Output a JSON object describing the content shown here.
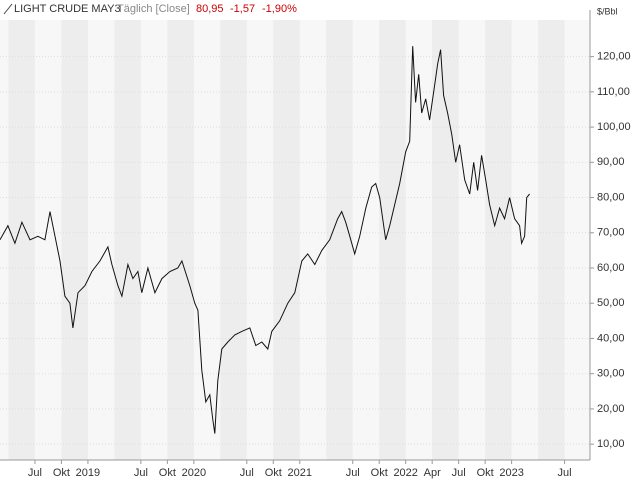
{
  "chart_data": {
    "type": "line",
    "title": "LIGHT CRUDE MAY3",
    "subtitle": "Täglich [Close]",
    "last": "80,95",
    "change": "-1,57",
    "change_pct": "-1,90%",
    "y_unit": "$/Bbl",
    "grid": true,
    "x": [
      2018.17,
      2018.245,
      2018.311,
      2018.377,
      2018.453,
      2018.528,
      2018.594,
      2018.642,
      2018.689,
      2018.736,
      2018.783,
      2018.83,
      2018.858,
      2018.906,
      2018.972,
      2019.038,
      2019.113,
      2019.189,
      2019.226,
      2019.283,
      2019.321,
      2019.377,
      2019.425,
      2019.472,
      2019.509,
      2019.566,
      2019.632,
      2019.698,
      2019.774,
      2019.849,
      2019.887,
      2019.962,
      2020.009,
      2020.038,
      2020.075,
      2020.113,
      2020.151,
      2020.179,
      2020.198,
      2020.226,
      2020.264,
      2020.321,
      2020.387,
      2020.453,
      2020.528,
      2020.585,
      2020.642,
      2020.698,
      2020.736,
      2020.811,
      2020.887,
      2020.953,
      2021.019,
      2021.075,
      2021.142,
      2021.208,
      2021.283,
      2021.358,
      2021.396,
      2021.434,
      2021.472,
      2021.519,
      2021.566,
      2021.623,
      2021.679,
      2021.717,
      2021.755,
      2021.811,
      2021.849,
      2021.896,
      2021.943,
      2022.0,
      2022.038,
      2022.066,
      2022.094,
      2022.123,
      2022.151,
      2022.189,
      2022.226,
      2022.274,
      2022.302,
      2022.33,
      2022.358,
      2022.396,
      2022.434,
      2022.472,
      2022.509,
      2022.557,
      2022.604,
      2022.642,
      2022.679,
      2022.717,
      2022.755,
      2022.792,
      2022.84,
      2022.887,
      2022.934,
      2022.981,
      2023.028,
      2023.075,
      2023.094,
      2023.123,
      2023.142,
      2023.17
    ],
    "series": [
      {
        "name": "LIGHT CRUDE MAY3",
        "color": "#111111",
        "values": [
          68,
          72,
          67,
          73,
          68,
          69,
          68,
          76,
          69,
          62,
          52,
          50,
          43,
          53,
          55,
          59,
          62,
          66,
          61,
          55,
          52,
          61,
          57,
          59,
          53,
          60,
          53,
          57,
          59,
          60,
          62,
          55,
          50,
          48,
          31,
          22,
          24,
          17,
          13,
          28,
          37,
          39,
          41,
          42,
          43,
          38,
          39,
          37,
          42,
          45,
          50,
          53,
          62,
          64,
          61,
          65,
          68,
          74,
          76,
          73,
          69,
          64,
          69,
          77,
          83,
          84,
          80,
          68,
          72,
          78,
          84,
          93,
          96,
          123,
          107,
          115,
          104,
          108,
          102,
          112,
          118,
          122,
          109,
          104,
          98,
          90,
          95,
          85,
          81,
          90,
          82,
          92,
          85,
          78,
          72,
          77,
          74,
          80,
          74,
          72,
          67,
          69,
          80,
          81
        ]
      }
    ],
    "xlim": [
      2018.17,
      2023.74
    ],
    "xticks": [
      {
        "value": 2018.5,
        "label": "Jul"
      },
      {
        "value": 2018.75,
        "label": "Okt"
      },
      {
        "value": 2019,
        "label": "2019"
      },
      {
        "value": 2019.5,
        "label": "Jul"
      },
      {
        "value": 2019.75,
        "label": "Okt"
      },
      {
        "value": 2020,
        "label": "2020"
      },
      {
        "value": 2020.5,
        "label": "Jul"
      },
      {
        "value": 2020.75,
        "label": "Okt"
      },
      {
        "value": 2021,
        "label": "2021"
      },
      {
        "value": 2021.5,
        "label": "Jul"
      },
      {
        "value": 2021.75,
        "label": "Okt"
      },
      {
        "value": 2022,
        "label": "2022"
      },
      {
        "value": 2022.25,
        "label": "Apr"
      },
      {
        "value": 2022.5,
        "label": "Jul"
      },
      {
        "value": 2022.75,
        "label": "Okt"
      },
      {
        "value": 2023,
        "label": "2023"
      },
      {
        "value": 2023.5,
        "label": "Jul"
      }
    ],
    "ylim": [
      5.5,
      130.4
    ],
    "yticks": [
      {
        "value": 10,
        "label": "10,00"
      },
      {
        "value": 20,
        "label": "20,00"
      },
      {
        "value": 30,
        "label": "30,00"
      },
      {
        "value": 40,
        "label": "40,00"
      },
      {
        "value": 50,
        "label": "50,00"
      },
      {
        "value": 60,
        "label": "60,00"
      },
      {
        "value": 70,
        "label": "70,00"
      },
      {
        "value": 80,
        "label": "80,00"
      },
      {
        "value": 90,
        "label": "90,00"
      },
      {
        "value": 100,
        "label": "100,00"
      },
      {
        "value": 110,
        "label": "110,00"
      },
      {
        "value": 120,
        "label": "120,00"
      }
    ]
  }
}
